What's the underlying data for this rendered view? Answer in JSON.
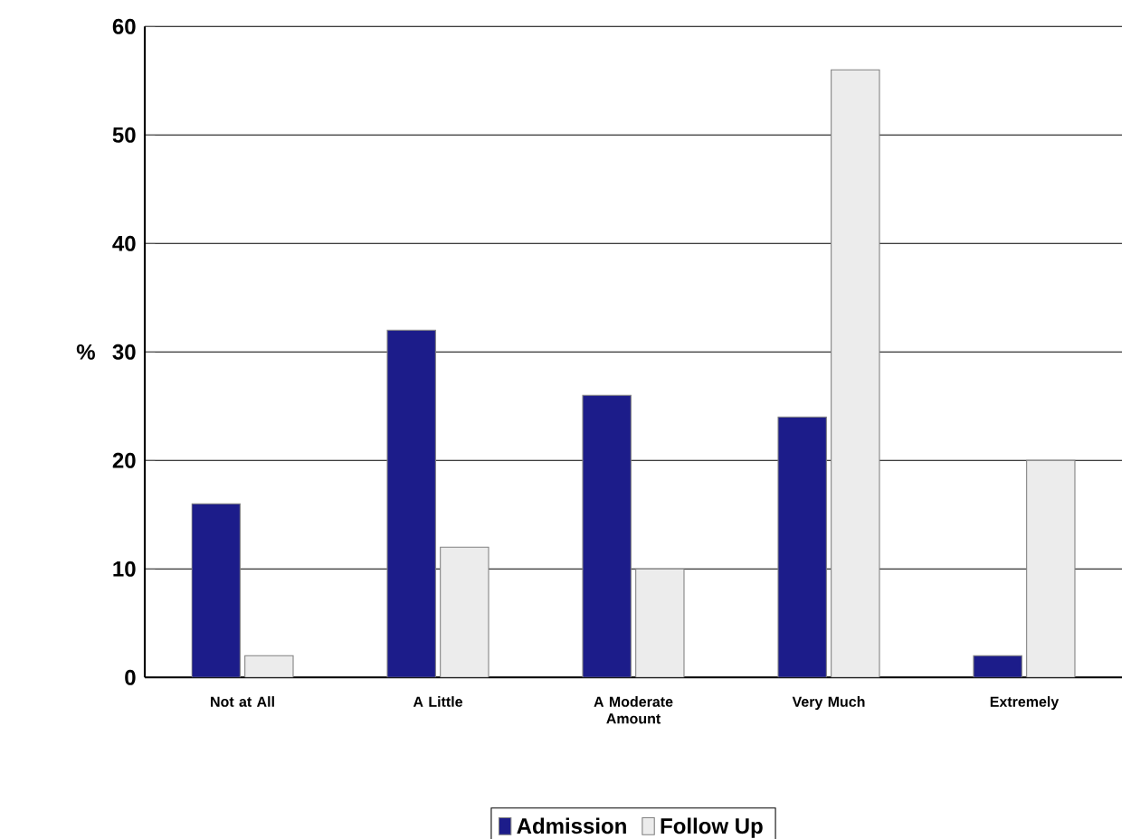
{
  "chart_data": {
    "type": "bar",
    "ylabel": "%",
    "categories": [
      "Not at All",
      "A Little",
      "A Moderate Amount",
      "Very Much",
      "Extremely"
    ],
    "series": [
      {
        "name": "Admission",
        "color": "#1c1c8a",
        "values": [
          16,
          32,
          26,
          24,
          2
        ]
      },
      {
        "name": "Follow Up",
        "color": "#ececec",
        "values": [
          2,
          12,
          10,
          56,
          20
        ]
      }
    ],
    "ylim": [
      0,
      60
    ],
    "yticks": [
      0,
      10,
      20,
      30,
      40,
      50,
      60
    ],
    "grid": "y",
    "legend": "bottom"
  }
}
